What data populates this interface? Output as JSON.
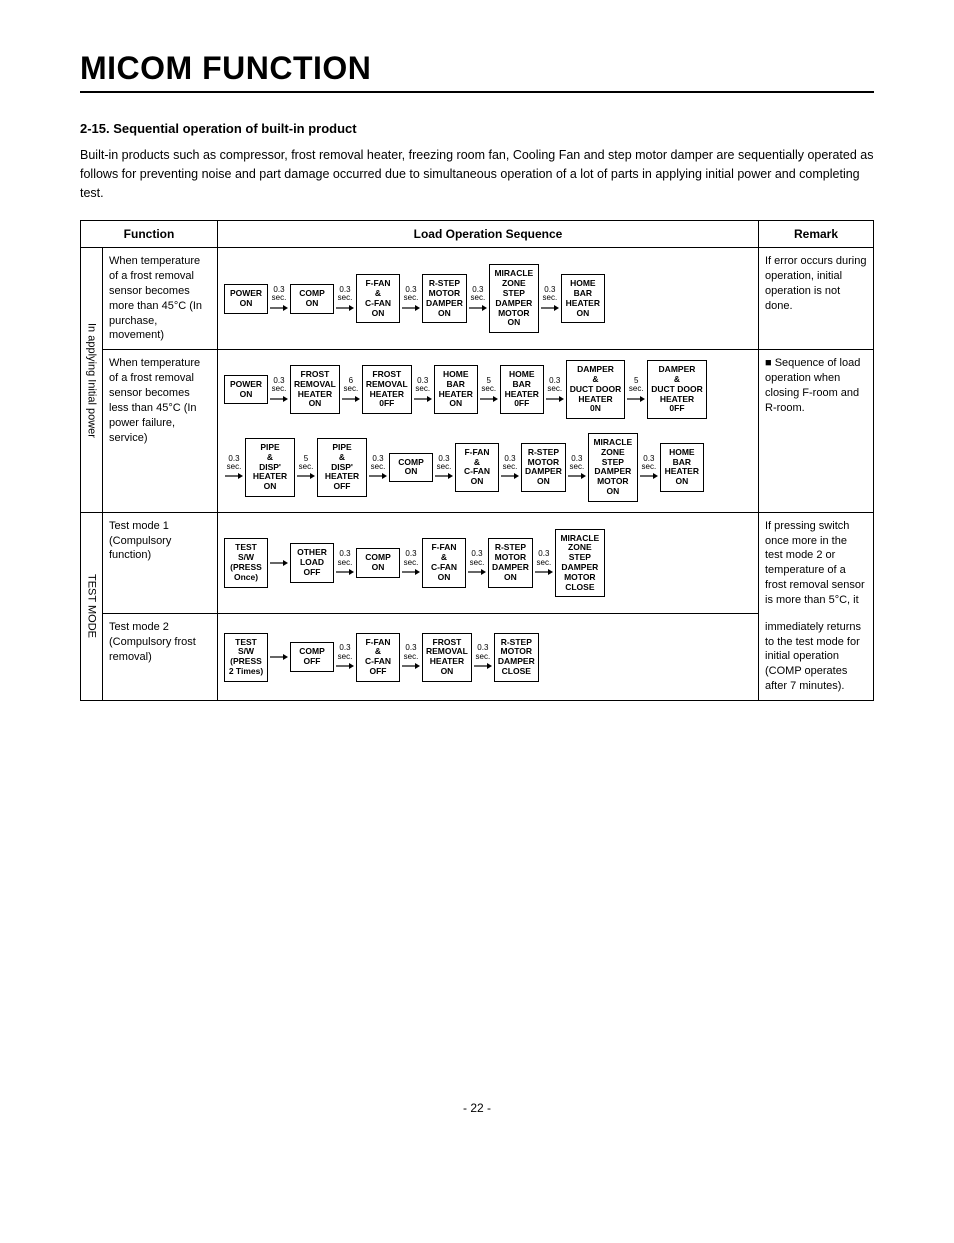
{
  "title": "MICOM FUNCTION",
  "section_heading": "2-15. Sequential operation of built-in product",
  "intro": "Built-in products such as compressor, frost removal heater, freezing room fan, Cooling Fan and step motor damper are sequentially operated as follows for preventing noise and part damage occurred due to simultaneous operation of a lot of parts in applying initial power and completing test.",
  "headers": {
    "func": "Function",
    "seq": "Load Operation Sequence",
    "remark": "Remark"
  },
  "vert1": "In applying Initial power",
  "vert2": "TEST MODE",
  "row1": {
    "func": "When temperature of a frost removal sensor becomes more than 45°C (In purchase, movement)",
    "remark": "If error occurs during operation, initial operation is not done.",
    "boxes": [
      "POWER\nON",
      "COMP\nON",
      "F-FAN\n&\nC-FAN\nON",
      "R-STEP\nMOTOR\nDAMPER\nON",
      "MIRACLE\nZONE\nSTEP\nDAMPER\nMOTOR\nON",
      "HOME\nBAR\nHEATER\nON"
    ],
    "delays": [
      "0.3\nsec.",
      "0.3\nsec.",
      "0.3\nsec.",
      "0.3\nsec.",
      "0.3\nsec."
    ]
  },
  "row2": {
    "func": "When temperature of a frost removal sensor becomes less than 45°C (In power failure, service)",
    "remark_bullet": "■",
    "remark": "Sequence of load operation when closing F-room and R-room.",
    "line1_boxes": [
      "POWER\nON",
      "FROST\nREMOVAL\nHEATER\nON",
      "FROST\nREMOVAL\nHEATER\n0FF",
      "HOME\nBAR\nHEATER\nON",
      "HOME\nBAR\nHEATER\n0FF",
      "DAMPER\n&\nDUCT DOOR\nHEATER\n0N",
      "DAMPER\n&\nDUCT DOOR\nHEATER\n0FF"
    ],
    "line1_delays": [
      "0.3\nsec.",
      "6\nsec.",
      "0.3\nsec.",
      "5\nsec.",
      "0.3\nsec.",
      "5\nsec."
    ],
    "line2_boxes": [
      "PIPE\n&\nDISP'\nHEATER\nON",
      "PIPE\n&\nDISP'\nHEATER\nOFF",
      "COMP\nON",
      "F-FAN\n&\nC-FAN\nON",
      "R-STEP\nMOTOR\nDAMPER\nON",
      "MIRACLE\nZONE\nSTEP\nDAMPER\nMOTOR\nON",
      "HOME\nBAR\nHEATER\nON"
    ],
    "line2_pre": "0.3\nsec.",
    "line2_delays": [
      "5\nsec.",
      "0.3\nsec.",
      "0.3\nsec.",
      "0.3\nsec.",
      "0.3\nsec.",
      "0.3\nsec."
    ]
  },
  "row3": {
    "func": "Test mode 1 (Compulsory function)",
    "remark": "If pressing switch once more in the test mode 2 or temperature of a frost removal sensor is more than 5°C, it",
    "boxes": [
      "TEST\nS/W\n(PRESS\nOnce)",
      "OTHER\nLOAD\nOFF",
      "COMP\nON",
      "F-FAN\n&\nC-FAN\nON",
      "R-STEP\nMOTOR\nDAMPER\nON",
      "MIRACLE\nZONE\nSTEP\nDAMPER\nMOTOR\nCLOSE"
    ],
    "delays": [
      "",
      "0.3\nsec.",
      "0.3\nsec.",
      "0.3\nsec.",
      "0.3\nsec."
    ]
  },
  "row4": {
    "func": "Test mode 2 (Compulsory frost removal)",
    "remark": "immediately returns to the test mode for initial operation\n(COMP operates after 7 minutes).",
    "boxes": [
      "TEST\nS/W\n(PRESS\n2 Times)",
      "COMP\nOFF",
      "F-FAN\n&\nC-FAN\nOFF",
      "FROST\nREMOVAL\nHEATER\nON",
      "R-STEP\nMOTOR\nDAMPER\nCLOSE"
    ],
    "delays": [
      "",
      "0.3\nsec.",
      "0.3\nsec.",
      "0.3\nsec."
    ]
  },
  "page": "- 22 -"
}
